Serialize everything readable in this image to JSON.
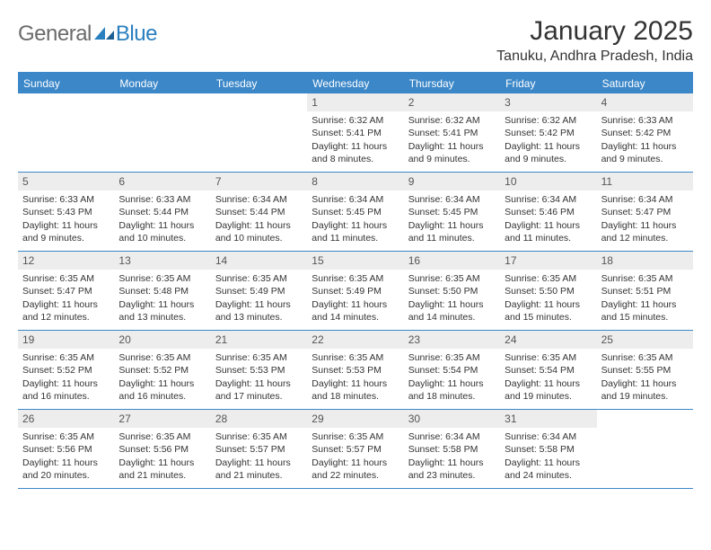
{
  "logo": {
    "text1": "General",
    "text2": "Blue"
  },
  "title": "January 2025",
  "location": "Tanuku, Andhra Pradesh, India",
  "colors": {
    "header_bg": "#3b87c8",
    "daynum_bg": "#ededed",
    "border": "#3b87c8"
  },
  "day_labels": [
    "Sunday",
    "Monday",
    "Tuesday",
    "Wednesday",
    "Thursday",
    "Friday",
    "Saturday"
  ],
  "weeks": [
    [
      {
        "empty": true
      },
      {
        "empty": true
      },
      {
        "empty": true
      },
      {
        "n": "1",
        "sr": "6:32 AM",
        "ss": "5:41 PM",
        "dl": "11 hours and 8 minutes."
      },
      {
        "n": "2",
        "sr": "6:32 AM",
        "ss": "5:41 PM",
        "dl": "11 hours and 9 minutes."
      },
      {
        "n": "3",
        "sr": "6:32 AM",
        "ss": "5:42 PM",
        "dl": "11 hours and 9 minutes."
      },
      {
        "n": "4",
        "sr": "6:33 AM",
        "ss": "5:42 PM",
        "dl": "11 hours and 9 minutes."
      }
    ],
    [
      {
        "n": "5",
        "sr": "6:33 AM",
        "ss": "5:43 PM",
        "dl": "11 hours and 9 minutes."
      },
      {
        "n": "6",
        "sr": "6:33 AM",
        "ss": "5:44 PM",
        "dl": "11 hours and 10 minutes."
      },
      {
        "n": "7",
        "sr": "6:34 AM",
        "ss": "5:44 PM",
        "dl": "11 hours and 10 minutes."
      },
      {
        "n": "8",
        "sr": "6:34 AM",
        "ss": "5:45 PM",
        "dl": "11 hours and 11 minutes."
      },
      {
        "n": "9",
        "sr": "6:34 AM",
        "ss": "5:45 PM",
        "dl": "11 hours and 11 minutes."
      },
      {
        "n": "10",
        "sr": "6:34 AM",
        "ss": "5:46 PM",
        "dl": "11 hours and 11 minutes."
      },
      {
        "n": "11",
        "sr": "6:34 AM",
        "ss": "5:47 PM",
        "dl": "11 hours and 12 minutes."
      }
    ],
    [
      {
        "n": "12",
        "sr": "6:35 AM",
        "ss": "5:47 PM",
        "dl": "11 hours and 12 minutes."
      },
      {
        "n": "13",
        "sr": "6:35 AM",
        "ss": "5:48 PM",
        "dl": "11 hours and 13 minutes."
      },
      {
        "n": "14",
        "sr": "6:35 AM",
        "ss": "5:49 PM",
        "dl": "11 hours and 13 minutes."
      },
      {
        "n": "15",
        "sr": "6:35 AM",
        "ss": "5:49 PM",
        "dl": "11 hours and 14 minutes."
      },
      {
        "n": "16",
        "sr": "6:35 AM",
        "ss": "5:50 PM",
        "dl": "11 hours and 14 minutes."
      },
      {
        "n": "17",
        "sr": "6:35 AM",
        "ss": "5:50 PM",
        "dl": "11 hours and 15 minutes."
      },
      {
        "n": "18",
        "sr": "6:35 AM",
        "ss": "5:51 PM",
        "dl": "11 hours and 15 minutes."
      }
    ],
    [
      {
        "n": "19",
        "sr": "6:35 AM",
        "ss": "5:52 PM",
        "dl": "11 hours and 16 minutes."
      },
      {
        "n": "20",
        "sr": "6:35 AM",
        "ss": "5:52 PM",
        "dl": "11 hours and 16 minutes."
      },
      {
        "n": "21",
        "sr": "6:35 AM",
        "ss": "5:53 PM",
        "dl": "11 hours and 17 minutes."
      },
      {
        "n": "22",
        "sr": "6:35 AM",
        "ss": "5:53 PM",
        "dl": "11 hours and 18 minutes."
      },
      {
        "n": "23",
        "sr": "6:35 AM",
        "ss": "5:54 PM",
        "dl": "11 hours and 18 minutes."
      },
      {
        "n": "24",
        "sr": "6:35 AM",
        "ss": "5:54 PM",
        "dl": "11 hours and 19 minutes."
      },
      {
        "n": "25",
        "sr": "6:35 AM",
        "ss": "5:55 PM",
        "dl": "11 hours and 19 minutes."
      }
    ],
    [
      {
        "n": "26",
        "sr": "6:35 AM",
        "ss": "5:56 PM",
        "dl": "11 hours and 20 minutes."
      },
      {
        "n": "27",
        "sr": "6:35 AM",
        "ss": "5:56 PM",
        "dl": "11 hours and 21 minutes."
      },
      {
        "n": "28",
        "sr": "6:35 AM",
        "ss": "5:57 PM",
        "dl": "11 hours and 21 minutes."
      },
      {
        "n": "29",
        "sr": "6:35 AM",
        "ss": "5:57 PM",
        "dl": "11 hours and 22 minutes."
      },
      {
        "n": "30",
        "sr": "6:34 AM",
        "ss": "5:58 PM",
        "dl": "11 hours and 23 minutes."
      },
      {
        "n": "31",
        "sr": "6:34 AM",
        "ss": "5:58 PM",
        "dl": "11 hours and 24 minutes."
      },
      {
        "empty": true
      }
    ]
  ],
  "labels": {
    "sunrise": "Sunrise:",
    "sunset": "Sunset:",
    "daylight": "Daylight:"
  }
}
